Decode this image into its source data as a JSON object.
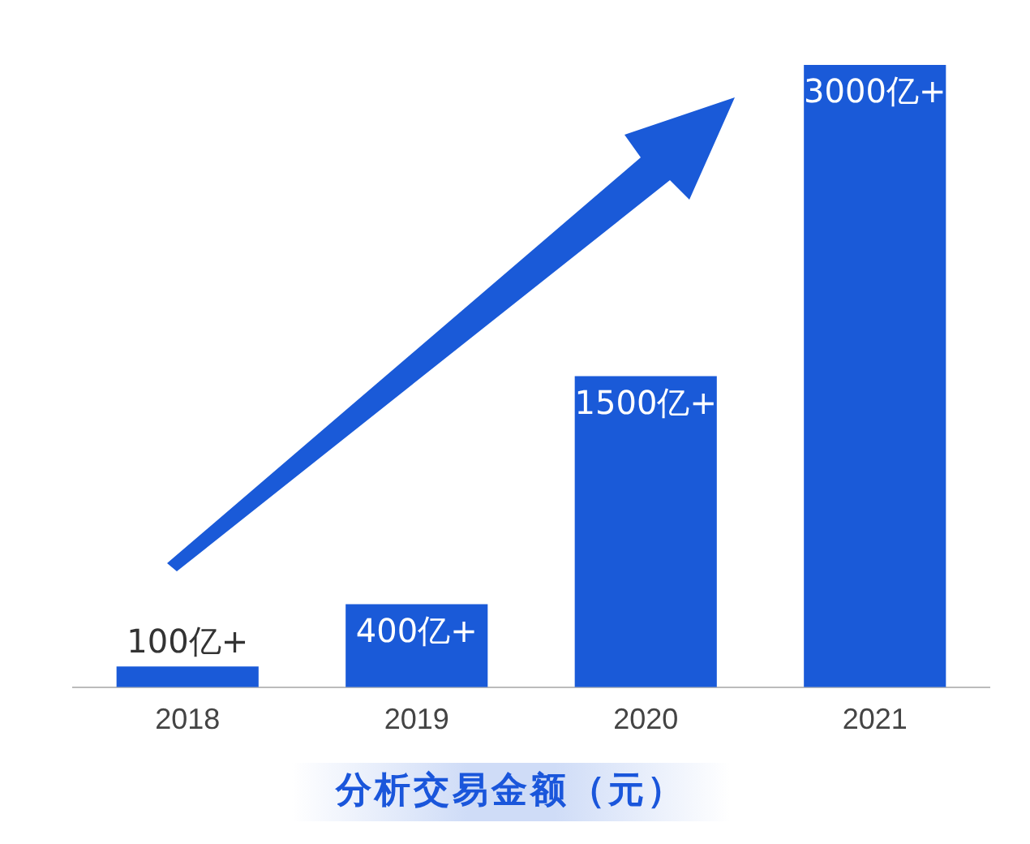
{
  "chart_data": {
    "type": "bar",
    "title": "分析交易金额（元）",
    "categories": [
      "2018",
      "2019",
      "2020",
      "2021"
    ],
    "values": [
      100,
      400,
      1500,
      3000
    ],
    "value_labels": [
      "100亿+",
      "400亿+",
      "1500亿+",
      "3000亿+"
    ],
    "color": "#1a5ad8",
    "grid": false,
    "legend": false,
    "tick_labels": "x"
  }
}
